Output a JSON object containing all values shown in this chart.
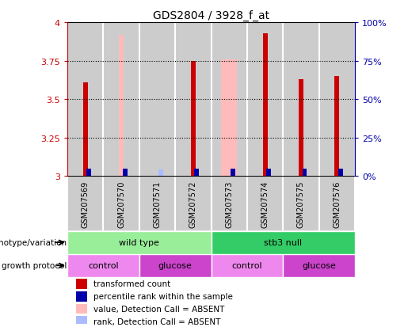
{
  "title": "GDS2804 / 3928_f_at",
  "samples": [
    "GSM207569",
    "GSM207570",
    "GSM207571",
    "GSM207572",
    "GSM207573",
    "GSM207574",
    "GSM207575",
    "GSM207576"
  ],
  "ylim_left": [
    3.0,
    4.0
  ],
  "ylim_right": [
    0,
    100
  ],
  "yticks_left": [
    3.0,
    3.25,
    3.5,
    3.75,
    4.0
  ],
  "yticks_right": [
    0,
    25,
    50,
    75,
    100
  ],
  "transformed_count": [
    3.61,
    null,
    null,
    3.75,
    null,
    3.93,
    3.63,
    3.65
  ],
  "transformed_count_absent": [
    null,
    3.92,
    null,
    null,
    null,
    null,
    null,
    null
  ],
  "percentile_absent_value": [
    null,
    null,
    null,
    null,
    3.76,
    null,
    null,
    null
  ],
  "percentile_rank_blue": [
    5,
    5,
    null,
    5,
    5,
    5,
    5,
    5
  ],
  "percentile_rank_lightblue": [
    null,
    null,
    4,
    null,
    null,
    null,
    null,
    null
  ],
  "genotype_groups": [
    {
      "label": "wild type",
      "start": 0,
      "end": 4,
      "color": "#99EE99"
    },
    {
      "label": "stb3 null",
      "start": 4,
      "end": 8,
      "color": "#33CC66"
    }
  ],
  "growth_groups": [
    {
      "label": "control",
      "start": 0,
      "end": 2,
      "color": "#EE88EE"
    },
    {
      "label": "glucose",
      "start": 2,
      "end": 4,
      "color": "#CC44CC"
    },
    {
      "label": "control",
      "start": 4,
      "end": 6,
      "color": "#EE88EE"
    },
    {
      "label": "glucose",
      "start": 6,
      "end": 8,
      "color": "#CC44CC"
    }
  ],
  "color_red": "#CC0000",
  "color_pink": "#FFBBBB",
  "color_blue": "#0000AA",
  "color_lightblue": "#AABBFF",
  "bg_color": "#FFFFFF",
  "bar_bg_color": "#CCCCCC",
  "legend_items": [
    {
      "color": "#CC0000",
      "label": "transformed count"
    },
    {
      "color": "#0000AA",
      "label": "percentile rank within the sample"
    },
    {
      "color": "#FFBBBB",
      "label": "value, Detection Call = ABSENT"
    },
    {
      "color": "#AABBFF",
      "label": "rank, Detection Call = ABSENT"
    }
  ]
}
